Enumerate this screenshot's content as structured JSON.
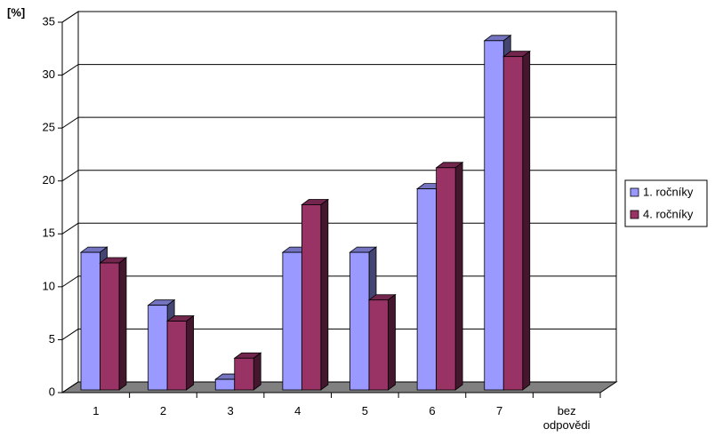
{
  "chart_data": {
    "type": "bar3d",
    "ylabel": "[%]",
    "categories": [
      "1",
      "2",
      "3",
      "4",
      "5",
      "6",
      "7",
      "bez odpovědi"
    ],
    "series": [
      {
        "name": "1. ročníky",
        "color": "#9999ff",
        "values": [
          13,
          8,
          1,
          13,
          13,
          19,
          33,
          null
        ]
      },
      {
        "name": "4. ročníky",
        "color": "#993366",
        "values": [
          12,
          6.5,
          3,
          17.5,
          8.5,
          21,
          31.5,
          null
        ]
      }
    ],
    "ylim": [
      0,
      35
    ],
    "yticks": [
      0,
      5,
      10,
      15,
      20,
      25,
      30,
      35
    ],
    "grid": true,
    "legend": "right"
  }
}
